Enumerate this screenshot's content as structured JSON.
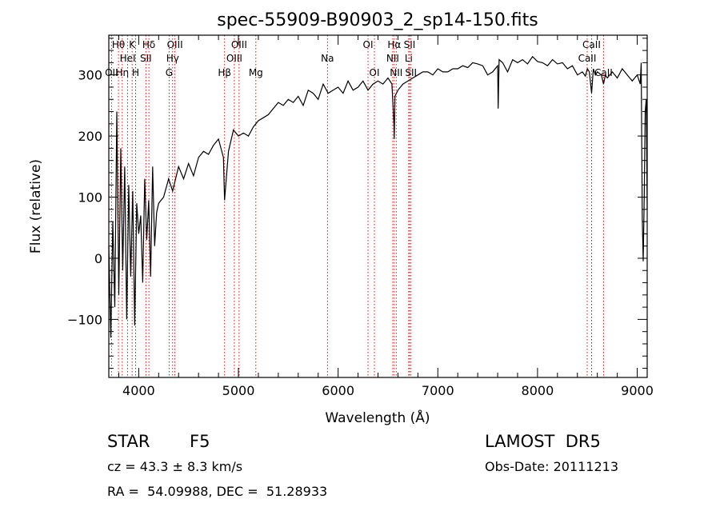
{
  "chart_data": {
    "type": "line",
    "title": "spec-55909-B90903_2_sp14-150.fits",
    "xlabel": "Wavelength (Å)",
    "ylabel": "Flux (relative)",
    "xlim": [
      3700,
      9100
    ],
    "ylim": [
      -195,
      365
    ],
    "xticks": [
      4000,
      5000,
      6000,
      7000,
      8000,
      9000
    ],
    "yticks": [
      -100,
      0,
      100,
      200,
      300
    ],
    "grid": false,
    "series": [
      {
        "color": "#000000",
        "x": [
          3700,
          3720,
          3740,
          3760,
          3780,
          3800,
          3820,
          3840,
          3860,
          3880,
          3900,
          3920,
          3940,
          3960,
          3980,
          4000,
          4020,
          4040,
          4060,
          4080,
          4100,
          4120,
          4140,
          4160,
          4180,
          4200,
          4250,
          4300,
          4340,
          4400,
          4450,
          4500,
          4550,
          4600,
          4650,
          4700,
          4750,
          4800,
          4850,
          4861,
          4900,
          4950,
          5000,
          5050,
          5100,
          5150,
          5200,
          5250,
          5300,
          5350,
          5400,
          5450,
          5500,
          5550,
          5600,
          5650,
          5700,
          5750,
          5800,
          5850,
          5900,
          5950,
          6000,
          6050,
          6100,
          6150,
          6200,
          6250,
          6300,
          6350,
          6400,
          6450,
          6500,
          6540,
          6560,
          6563,
          6570,
          6600,
          6650,
          6700,
          6750,
          6800,
          6850,
          6900,
          6950,
          7000,
          7050,
          7100,
          7150,
          7200,
          7250,
          7300,
          7350,
          7400,
          7450,
          7500,
          7550,
          7600,
          7605,
          7615,
          7650,
          7700,
          7750,
          7800,
          7850,
          7900,
          7950,
          8000,
          8050,
          8100,
          8150,
          8200,
          8250,
          8300,
          8350,
          8400,
          8450,
          8480,
          8500,
          8520,
          8542,
          8560,
          8580,
          8600,
          8640,
          8662,
          8680,
          8700,
          8750,
          8800,
          8850,
          8900,
          8950,
          9000,
          9030,
          9040,
          9050,
          9060,
          9070,
          9080,
          9090,
          9100
        ],
        "values": [
          20,
          -130,
          60,
          -80,
          240,
          -60,
          180,
          -20,
          150,
          -100,
          120,
          -30,
          110,
          -110,
          90,
          40,
          70,
          -40,
          130,
          30,
          95,
          -30,
          150,
          20,
          75,
          90,
          100,
          130,
          110,
          150,
          130,
          155,
          135,
          165,
          175,
          170,
          185,
          195,
          165,
          95,
          175,
          210,
          200,
          205,
          200,
          215,
          225,
          230,
          235,
          245,
          255,
          250,
          260,
          255,
          265,
          250,
          275,
          270,
          260,
          285,
          270,
          275,
          280,
          270,
          290,
          275,
          280,
          290,
          275,
          285,
          290,
          285,
          295,
          285,
          220,
          195,
          265,
          275,
          285,
          290,
          295,
          300,
          305,
          305,
          300,
          310,
          305,
          305,
          310,
          310,
          315,
          312,
          320,
          318,
          315,
          300,
          305,
          315,
          245,
          325,
          320,
          305,
          325,
          320,
          325,
          318,
          330,
          322,
          320,
          315,
          325,
          318,
          320,
          310,
          315,
          300,
          305,
          298,
          310,
          305,
          270,
          310,
          300,
          305,
          300,
          285,
          300,
          295,
          305,
          295,
          310,
          300,
          290,
          300,
          285,
          320,
          70,
          -5,
          100,
          240,
          260,
          80
        ]
      }
    ],
    "lines": [
      {
        "label": "OII",
        "wavelength": 3727,
        "row": 3
      },
      {
        "label": "Hθ",
        "wavelength": 3797,
        "row": 1
      },
      {
        "label": "Hη",
        "wavelength": 3835,
        "row": 3
      },
      {
        "label": "HeI",
        "wavelength": 3889,
        "row": 2
      },
      {
        "label": "K",
        "wavelength": 3934,
        "row": 1
      },
      {
        "label": "H",
        "wavelength": 3969,
        "row": 3
      },
      {
        "label": "Hδ",
        "wavelength": 4102,
        "row": 1
      },
      {
        "label": "SII",
        "wavelength": 4072,
        "row": 2
      },
      {
        "label": "OIII",
        "wavelength": 4363,
        "row": 1
      },
      {
        "label": "Hγ",
        "wavelength": 4340,
        "row": 2
      },
      {
        "label": "G",
        "wavelength": 4305,
        "row": 3
      },
      {
        "label": "Hβ",
        "wavelength": 4861,
        "row": 3
      },
      {
        "label": "OIII",
        "wavelength": 5007,
        "row": 1
      },
      {
        "label": "OIII",
        "wavelength": 4959,
        "row": 2
      },
      {
        "label": "Mg",
        "wavelength": 5175,
        "row": 3
      },
      {
        "label": "Na",
        "wavelength": 5893,
        "row": 2
      },
      {
        "label": "OI",
        "wavelength": 6300,
        "row": 1
      },
      {
        "label": "OI",
        "wavelength": 6364,
        "row": 3
      },
      {
        "label": "Hα",
        "wavelength": 6563,
        "row": 1
      },
      {
        "label": "NII",
        "wavelength": 6548,
        "row": 2
      },
      {
        "label": "NII",
        "wavelength": 6583,
        "row": 3
      },
      {
        "label": "SII",
        "wavelength": 6717,
        "row": 1
      },
      {
        "label": "Li",
        "wavelength": 6708,
        "row": 2
      },
      {
        "label": "SII",
        "wavelength": 6731,
        "row": 3
      },
      {
        "label": "CaII",
        "wavelength": 8542,
        "row": 1
      },
      {
        "label": "CaII",
        "wavelength": 8498,
        "row": 2
      },
      {
        "label": "CaII",
        "wavelength": 8662,
        "row": 3
      }
    ]
  },
  "info": {
    "class": "STAR",
    "subclass": "F5",
    "survey": "LAMOST  DR5",
    "redshift": "cz = 43.3 ± 8.3 km/s",
    "obs_date": "Obs-Date: 20111213",
    "coords": "RA =  54.09988, DEC =  51.28933"
  }
}
